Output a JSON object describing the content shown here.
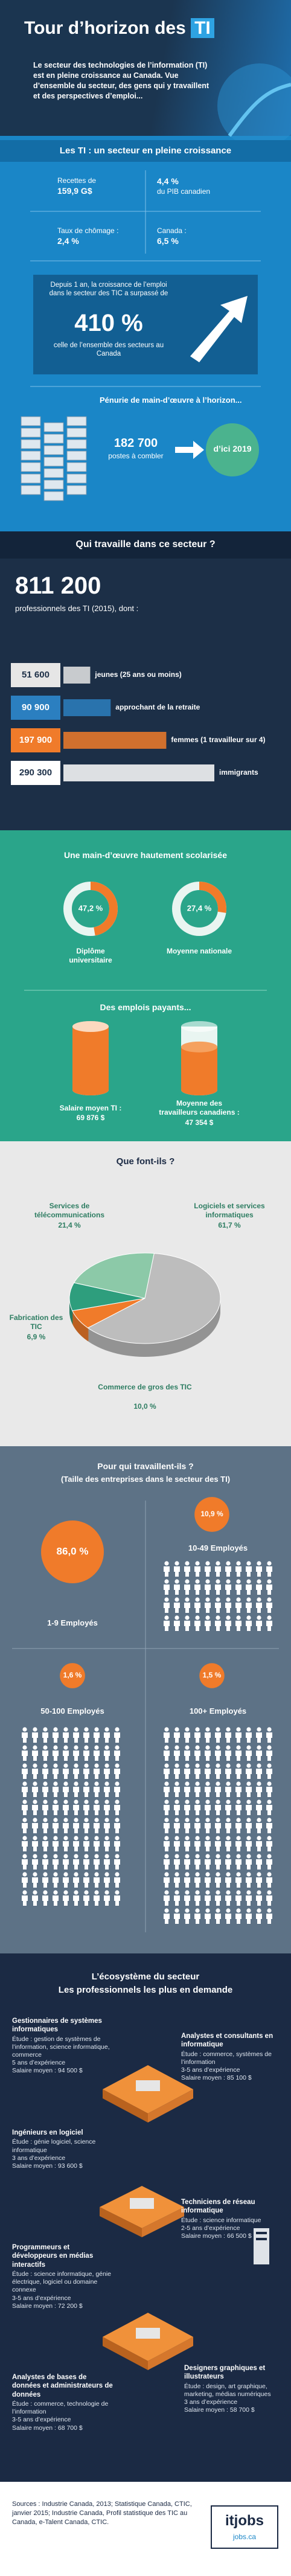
{
  "header": {
    "title": "Tour d’horizon des",
    "title_highlight": "TI",
    "intro": "Le secteur des technologies de l’information (TI) est en pleine croissance au Canada. Vue d’ensemble du secteur, des gens qui y travaillent et des perspectives d’emploi..."
  },
  "growth": {
    "heading": "Les TI : un secteur en pleine croissance",
    "stats": [
      {
        "label": "Recettes de",
        "value": "159,9 G$"
      },
      {
        "value": "4,4 %",
        "label": "du PIB canadien"
      },
      {
        "label": "Taux de chômage :",
        "value": "2,4 %"
      },
      {
        "label": "Canada :",
        "value": "6,5 %"
      }
    ],
    "employment": {
      "text": "Depuis 1 an, la croissance de l’emploi dans le secteur des TIC a surpassé de",
      "value": "410 %",
      "note": "celle de l’ensemble des secteurs au Canada"
    },
    "shortage": {
      "heading": "Pénurie de main-d’œuvre à l’horizon...",
      "value": "182 700",
      "label": "postes à combler",
      "horizon": "d’ici 2019"
    }
  },
  "workers": {
    "heading": "Qui travaille dans ce secteur ?",
    "total": "811 200",
    "total_note": "professionnels des TI (2015), dont :",
    "groups": [
      {
        "value": 51600,
        "value_label": "51 600",
        "label": "jeunes (25 ans ou moins)",
        "color": "#e6e6e6"
      },
      {
        "value": 90900,
        "value_label": "90 900",
        "label": "approchant de la retraite",
        "color": "#2b7fc0"
      },
      {
        "value": 197900,
        "value_label": "197 900",
        "label": "femmes (1 travailleur sur 4)",
        "color": "#f07b2a"
      },
      {
        "value": 290300,
        "value_label": "290 300",
        "label": "immigrants",
        "color": "#ffffff"
      }
    ]
  },
  "education": {
    "heading": "Une main-d’œuvre hautement scolarisée",
    "items": [
      {
        "value": 47.2,
        "value_label": "47,2 %",
        "label": "Diplôme universitaire",
        "color": "#f07b2a"
      },
      {
        "value": 27.4,
        "value_label": "27,4 %",
        "label": "Moyenne nationale",
        "color": "#f07b2a"
      }
    ]
  },
  "pay": {
    "heading": "Des emplois payants...",
    "items": [
      {
        "label": "Salaire moyen TI :",
        "value": 69876,
        "value_label": "69 876 $",
        "color": "#f07b2a"
      },
      {
        "label": "Moyenne des travailleurs canadiens :",
        "value": 47354,
        "value_label": "47 354 $",
        "color": "#f07b2a"
      }
    ]
  },
  "activities": {
    "type": "pie",
    "heading": "Que font-ils ?",
    "categories": [
      "Services de télécommunications",
      "Logiciels et services informatiques",
      "Fabrication des TIC",
      "Commerce de gros des TIC"
    ],
    "values": [
      21.4,
      61.7,
      6.9,
      10.0
    ],
    "value_labels": [
      "21,4 %",
      "61,7 %",
      "6,9 %",
      "10,0 %"
    ],
    "colors": [
      "#8cc9a8",
      "#bdbdbd",
      "#f07b2a",
      "#2e9e7d"
    ]
  },
  "firms": {
    "heading": "Pour qui travaillent-ils ?",
    "subheading": "(Taille des entreprises dans le secteur des TI)",
    "items": [
      {
        "value": 86.0,
        "value_label": "86,0 %",
        "label": "1-9 Employés"
      },
      {
        "value": 10.9,
        "value_label": "10,9 %",
        "label": "10-49 Employés"
      },
      {
        "value": 1.6,
        "value_label": "1,6 %",
        "label": "50-100 Employés"
      },
      {
        "value": 1.5,
        "value_label": "1,5 %",
        "label": "100+ Employés"
      }
    ],
    "color": "#f07b2a"
  },
  "ecosystem": {
    "heading": "L’écosystème du secteur",
    "subheading": "Les professionnels les plus en demande",
    "jobs": [
      {
        "title": "Gestionnaires de systèmes informatiques",
        "study": "Étude : gestion de systèmes de l’information, science informatique, commerce",
        "experience": "5 ans d’expérience",
        "salary": "Salaire moyen : 94 500 $"
      },
      {
        "title": "Analystes et consultants en informatique",
        "study": "Étude : commerce, systèmes de l’information",
        "experience": "3-5 ans d’expérience",
        "salary": "Salaire moyen : 85 100 $"
      },
      {
        "title": "Ingénieurs en logiciel",
        "study": "Étude : génie logiciel, science informatique",
        "experience": "3 ans d’expérience",
        "salary": "Salaire moyen : 93 600 $"
      },
      {
        "title": "Techniciens de réseau informatique",
        "study": "Étude : science informatique",
        "experience": "2-5 ans d’expérience",
        "salary": "Salaire moyen : 66 500 $"
      },
      {
        "title": "Programmeurs et développeurs en médias interactifs",
        "study": "Étude : science informatique, génie électrique, logiciel ou domaine connexe",
        "experience": "3-5 ans d’expérience",
        "salary": "Salaire moyen : 72 200 $"
      },
      {
        "title": "Analystes de bases de données et administrateurs de données",
        "study": "Étude : commerce, technologie de l’information",
        "experience": "3-5 ans d’expérience",
        "salary": "Salaire moyen : 68 700 $"
      },
      {
        "title": "Designers graphiques et illustrateurs",
        "study": "Étude : design, art graphique, marketing, médias numériques",
        "experience": "3 ans d’expérience",
        "salary": "Salaire moyen : 58 700 $"
      }
    ]
  },
  "footer": {
    "sources": "Sources : Industrie Canada, 2013; Statistique Canada, CTIC, janvier 2015; Industrie Canada, Profil statistique des TIC au Canada, e-Talent Canada, CTIC.",
    "logo": "itjobs",
    "partner": "jobs.ca"
  }
}
